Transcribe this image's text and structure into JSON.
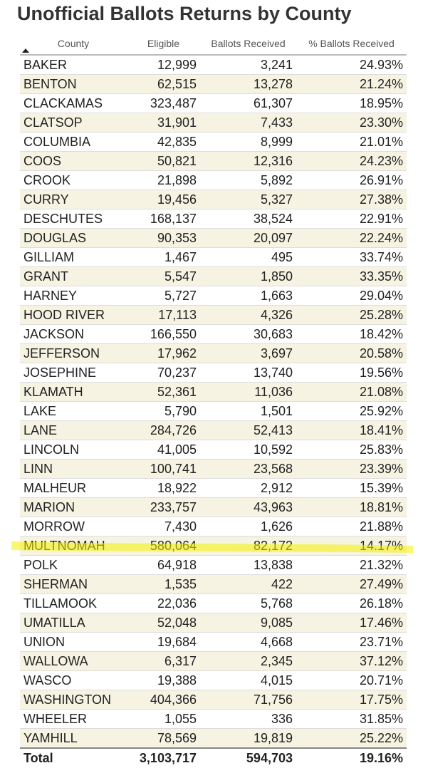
{
  "title": "Unofficial Ballots Returns by County",
  "table": {
    "headers": [
      "County",
      "Eligible",
      "Ballots Received",
      "% Ballots Received"
    ],
    "rows": [
      [
        "BAKER",
        "12,999",
        "3,241",
        "24.93%"
      ],
      [
        "BENTON",
        "62,515",
        "13,278",
        "21.24%"
      ],
      [
        "CLACKAMAS",
        "323,487",
        "61,307",
        "18.95%"
      ],
      [
        "CLATSOP",
        "31,901",
        "7,433",
        "23.30%"
      ],
      [
        "COLUMBIA",
        "42,835",
        "8,999",
        "21.01%"
      ],
      [
        "COOS",
        "50,821",
        "12,316",
        "24.23%"
      ],
      [
        "CROOK",
        "21,898",
        "5,892",
        "26.91%"
      ],
      [
        "CURRY",
        "19,456",
        "5,327",
        "27.38%"
      ],
      [
        "DESCHUTES",
        "168,137",
        "38,524",
        "22.91%"
      ],
      [
        "DOUGLAS",
        "90,353",
        "20,097",
        "22.24%"
      ],
      [
        "GILLIAM",
        "1,467",
        "495",
        "33.74%"
      ],
      [
        "GRANT",
        "5,547",
        "1,850",
        "33.35%"
      ],
      [
        "HARNEY",
        "5,727",
        "1,663",
        "29.04%"
      ],
      [
        "HOOD RIVER",
        "17,113",
        "4,326",
        "25.28%"
      ],
      [
        "JACKSON",
        "166,550",
        "30,683",
        "18.42%"
      ],
      [
        "JEFFERSON",
        "17,962",
        "3,697",
        "20.58%"
      ],
      [
        "JOSEPHINE",
        "70,237",
        "13,740",
        "19.56%"
      ],
      [
        "KLAMATH",
        "52,361",
        "11,036",
        "21.08%"
      ],
      [
        "LAKE",
        "5,790",
        "1,501",
        "25.92%"
      ],
      [
        "LANE",
        "284,726",
        "52,413",
        "18.41%"
      ],
      [
        "LINCOLN",
        "41,005",
        "10,592",
        "25.83%"
      ],
      [
        "LINN",
        "100,741",
        "23,568",
        "23.39%"
      ],
      [
        "MALHEUR",
        "18,922",
        "2,912",
        "15.39%"
      ],
      [
        "MARION",
        "233,757",
        "43,963",
        "18.81%"
      ],
      [
        "MORROW",
        "7,430",
        "1,626",
        "21.88%"
      ],
      [
        "MULTNOMAH",
        "580,064",
        "82,172",
        "14.17%"
      ],
      [
        "POLK",
        "64,918",
        "13,838",
        "21.32%"
      ],
      [
        "SHERMAN",
        "1,535",
        "422",
        "27.49%"
      ],
      [
        "TILLAMOOK",
        "22,036",
        "5,768",
        "26.18%"
      ],
      [
        "UMATILLA",
        "52,048",
        "9,085",
        "17.46%"
      ],
      [
        "UNION",
        "19,684",
        "4,668",
        "23.71%"
      ],
      [
        "WALLOWA",
        "6,317",
        "2,345",
        "37.12%"
      ],
      [
        "WASCO",
        "19,388",
        "4,015",
        "20.71%"
      ],
      [
        "WASHINGTON",
        "404,366",
        "71,756",
        "17.75%"
      ],
      [
        "WHEELER",
        "1,055",
        "336",
        "31.85%"
      ],
      [
        "YAMHILL",
        "78,569",
        "19,819",
        "25.22%"
      ]
    ],
    "total": [
      "Total",
      "3,103,717",
      "594,703",
      "19.16%"
    ]
  }
}
